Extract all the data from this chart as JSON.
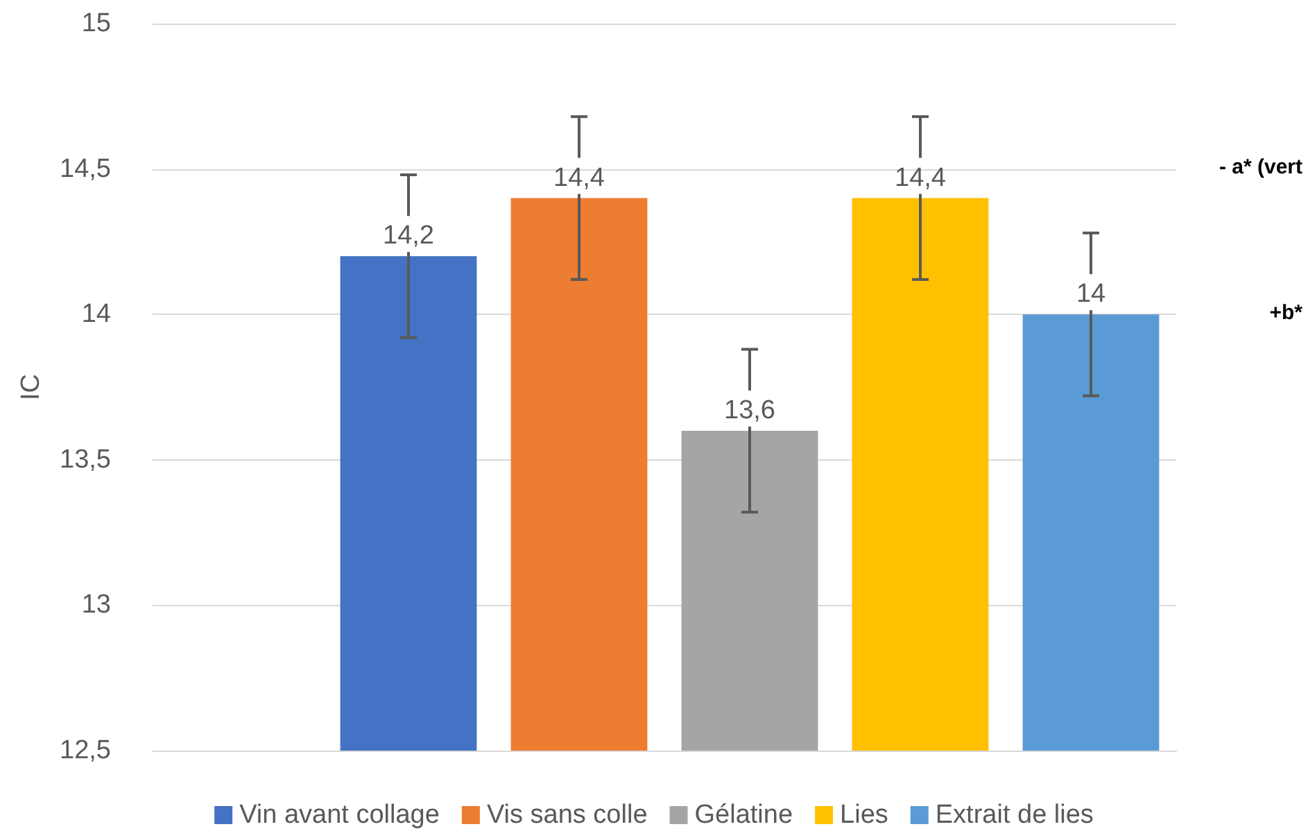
{
  "chart_data": {
    "type": "bar",
    "ylabel": "IC",
    "categories": [
      null,
      null,
      null,
      null,
      null,
      null
    ],
    "series": [
      {
        "name": "Vin avant collage",
        "color": "#4472c4",
        "values": [
          null,
          14.2,
          null,
          null,
          null,
          null
        ],
        "errors": [
          null,
          0.28,
          null,
          null,
          null,
          null
        ],
        "value_labels": [
          null,
          "14,2",
          null,
          null,
          null,
          null
        ]
      },
      {
        "name": "Vis sans colle",
        "color": "#ed7d31",
        "values": [
          null,
          null,
          14.4,
          null,
          null,
          null
        ],
        "errors": [
          null,
          null,
          0.28,
          null,
          null,
          null
        ],
        "value_labels": [
          null,
          null,
          "14,4",
          null,
          null,
          null
        ]
      },
      {
        "name": "Gélatine",
        "color": "#a5a5a5",
        "values": [
          null,
          null,
          null,
          13.6,
          null,
          null
        ],
        "errors": [
          null,
          null,
          null,
          0.28,
          null,
          null
        ],
        "value_labels": [
          null,
          null,
          null,
          "13,6",
          null,
          null
        ]
      },
      {
        "name": "Lies",
        "color": "#ffc000",
        "values": [
          null,
          null,
          null,
          null,
          14.4,
          null
        ],
        "errors": [
          null,
          null,
          null,
          null,
          0.28,
          null
        ],
        "value_labels": [
          null,
          null,
          null,
          null,
          "14,4",
          null
        ]
      },
      {
        "name": "Extrait de lies",
        "color": "#5b9bd5",
        "values": [
          null,
          null,
          null,
          null,
          null,
          14
        ],
        "errors": [
          null,
          null,
          null,
          null,
          null,
          0.28
        ],
        "value_labels": [
          null,
          null,
          null,
          null,
          null,
          "14"
        ]
      }
    ],
    "ylim": [
      12.5,
      15
    ],
    "yticks": [
      {
        "value": 12.5,
        "label": "12,5"
      },
      {
        "value": 13,
        "label": "13"
      },
      {
        "value": 13.5,
        "label": "13,5"
      },
      {
        "value": 14,
        "label": "14"
      },
      {
        "value": 14.5,
        "label": "14,5"
      },
      {
        "value": 15,
        "label": "15"
      }
    ],
    "annotations": [
      "- a* (vert",
      "+b*"
    ],
    "grid": "y",
    "legend": "bottom"
  }
}
